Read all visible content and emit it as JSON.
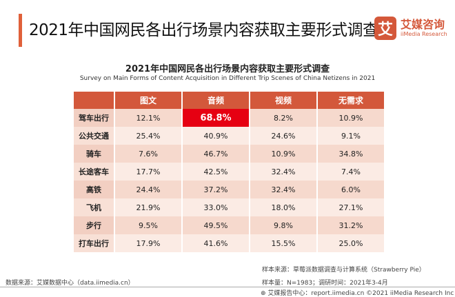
{
  "header": {
    "title": "2021年中国网民各出行场景内容获取主要形式调查",
    "logo_mark": "艾",
    "logo_cn": "艾媒咨询",
    "logo_en": "iiMedia Research"
  },
  "table": {
    "title": "2021年中国网民各出行场景内容获取主要形式调查",
    "subtitle": "Survey on Main Forms of Content Acquisition in Different Trip Scenes of China Netizens in 2021",
    "columns": [
      "",
      "图文",
      "音频",
      "视频",
      "无需求"
    ],
    "rows": [
      {
        "label": "驾车出行",
        "values": [
          "12.1%",
          "68.8%",
          "8.2%",
          "10.9%"
        ]
      },
      {
        "label": "公共交通",
        "values": [
          "25.4%",
          "40.9%",
          "24.6%",
          "9.1%"
        ]
      },
      {
        "label": "骑车",
        "values": [
          "7.6%",
          "46.7%",
          "10.9%",
          "34.8%"
        ]
      },
      {
        "label": "长途客车",
        "values": [
          "17.7%",
          "42.5%",
          "32.4%",
          "7.4%"
        ]
      },
      {
        "label": "高铁",
        "values": [
          "24.4%",
          "37.2%",
          "32.4%",
          "6.0%"
        ]
      },
      {
        "label": "飞机",
        "values": [
          "21.9%",
          "33.0%",
          "18.0%",
          "27.1%"
        ]
      },
      {
        "label": "步行",
        "values": [
          "9.5%",
          "49.5%",
          "9.8%",
          "31.2%"
        ]
      },
      {
        "label": "打车出行",
        "values": [
          "17.9%",
          "41.6%",
          "15.5%",
          "25.0%"
        ]
      }
    ],
    "highlight_color": "#e60012",
    "header_color": "#d3583b"
  },
  "footer": {
    "data_source": "数据来源：艾媒数据中心（data.iimedia.cn）",
    "sample_source": "样本来源：草莓派数据调查与计算系统（Strawberry Pie）",
    "sample_size": "样本量：N=1983；调研时间：2021年3-4月",
    "report": "艾媒报告中心：report.iimedia.cn ©2021 iiMedia Research Inc"
  }
}
